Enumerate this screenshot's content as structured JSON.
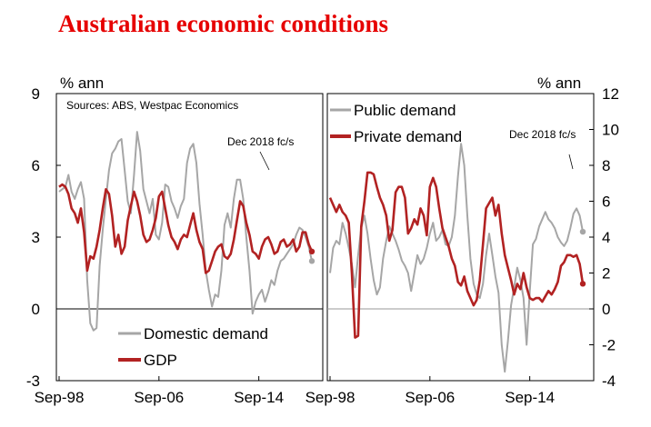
{
  "title": "Australian economic conditions",
  "colors": {
    "title": "#e60000",
    "red": "#b22222",
    "grey": "#a6a6a6",
    "axis": "#000000",
    "zero": "#999999"
  },
  "chart_data": [
    {
      "type": "line",
      "panel": "left",
      "unit_label": "% ann",
      "source": "Sources: ABS, Westpac Economics",
      "annotation": "Dec 2018 fc/s",
      "ylim": [
        -3,
        9
      ],
      "yticks": [
        -3,
        0,
        3,
        6,
        9
      ],
      "x_tick_labels": [
        "Sep-98",
        "Sep-06",
        "Sep-14"
      ],
      "x_tick_index": [
        0,
        32,
        64
      ],
      "x_count": 82,
      "series": [
        {
          "name": "Domestic demand",
          "color": "grey",
          "values": [
            4.9,
            5.0,
            5.1,
            5.6,
            4.9,
            4.6,
            5.0,
            5.3,
            4.6,
            1.2,
            -0.6,
            -0.9,
            -0.8,
            1.8,
            3.3,
            4.6,
            5.8,
            6.5,
            6.7,
            7.0,
            7.1,
            5.8,
            4.5,
            4.0,
            5.6,
            7.4,
            6.6,
            5.0,
            4.5,
            4.0,
            4.6,
            3.1,
            2.9,
            3.6,
            5.2,
            5.1,
            4.5,
            4.2,
            3.8,
            4.3,
            4.6,
            6.1,
            6.7,
            6.9,
            6.1,
            4.4,
            3.1,
            1.6,
            0.8,
            0.1,
            0.6,
            0.5,
            1.6,
            3.5,
            4.0,
            3.4,
            4.6,
            5.4,
            5.4,
            4.6,
            3.0,
            1.6,
            -0.2,
            0.3,
            0.6,
            0.8,
            0.3,
            0.7,
            1.2,
            1.0,
            1.6,
            2.0,
            2.1,
            2.3,
            2.5,
            2.7,
            3.1,
            3.4,
            3.3,
            3.0,
            2.6,
            2.0
          ],
          "end_marker": true
        },
        {
          "name": "GDP",
          "color": "red",
          "values": [
            5.1,
            5.2,
            5.1,
            4.8,
            4.2,
            4.0,
            3.6,
            4.2,
            3.2,
            1.6,
            2.2,
            2.1,
            2.6,
            3.3,
            4.2,
            5.0,
            4.8,
            3.9,
            2.6,
            3.1,
            2.3,
            2.6,
            3.7,
            4.3,
            4.9,
            4.5,
            3.9,
            3.1,
            2.8,
            2.9,
            3.3,
            3.8,
            4.7,
            4.9,
            4.2,
            3.5,
            3.0,
            2.8,
            2.5,
            2.9,
            3.1,
            3.0,
            3.5,
            4.0,
            3.3,
            2.8,
            2.5,
            1.5,
            1.6,
            2.0,
            2.4,
            2.6,
            2.7,
            2.2,
            2.1,
            2.3,
            2.9,
            3.7,
            4.5,
            4.3,
            3.6,
            3.1,
            2.4,
            2.3,
            2.1,
            2.6,
            2.9,
            3.0,
            2.7,
            2.3,
            2.4,
            2.8,
            2.9,
            2.6,
            2.7,
            2.9,
            2.4,
            2.6,
            3.2,
            3.2,
            2.7,
            2.4
          ],
          "end_marker": true
        }
      ]
    },
    {
      "type": "line",
      "panel": "right",
      "unit_label": "% ann",
      "annotation": "Dec 2018 fc/s",
      "ylim": [
        -4,
        12
      ],
      "yticks": [
        -4,
        -2,
        0,
        2,
        4,
        6,
        8,
        10,
        12
      ],
      "x_tick_labels": [
        "Sep-98",
        "Sep-06",
        "Sep-14"
      ],
      "x_tick_index": [
        0,
        32,
        64
      ],
      "x_count": 82,
      "series": [
        {
          "name": "Public demand",
          "color": "grey",
          "values": [
            2.0,
            3.4,
            3.8,
            3.6,
            4.8,
            4.2,
            3.4,
            2.5,
            1.2,
            3.0,
            4.5,
            5.2,
            4.2,
            2.8,
            1.6,
            0.8,
            1.2,
            2.8,
            3.8,
            4.6,
            4.2,
            3.8,
            3.3,
            2.7,
            2.4,
            2.0,
            1.0,
            2.0,
            3.0,
            2.5,
            2.8,
            3.4,
            4.2,
            4.8,
            3.8,
            4.0,
            4.4,
            3.6,
            3.5,
            4.0,
            5.2,
            7.4,
            9.2,
            8.0,
            5.2,
            2.8,
            1.4,
            0.8,
            0.6,
            1.4,
            3.0,
            4.2,
            3.0,
            1.8,
            0.9,
            -2.0,
            -3.5,
            -1.8,
            0.2,
            1.2,
            2.3,
            1.6,
            0.6,
            -2.0,
            1.0,
            3.6,
            3.9,
            4.6,
            5.0,
            5.4,
            5.0,
            4.8,
            4.5,
            4.0,
            3.7,
            3.5,
            3.8,
            4.5,
            5.3,
            5.6,
            5.2,
            4.3
          ],
          "end_marker": true
        },
        {
          "name": "Private demand",
          "color": "red",
          "values": [
            6.2,
            5.8,
            5.4,
            5.8,
            5.4,
            5.2,
            4.8,
            2.0,
            -1.6,
            -1.5,
            4.6,
            6.0,
            7.6,
            7.6,
            7.5,
            6.8,
            6.2,
            5.8,
            5.2,
            3.8,
            4.4,
            6.5,
            6.8,
            6.8,
            6.2,
            4.2,
            4.5,
            5.0,
            4.7,
            5.6,
            5.2,
            4.1,
            6.8,
            7.3,
            6.8,
            5.6,
            4.5,
            4.0,
            3.5,
            2.8,
            2.4,
            1.5,
            1.3,
            1.8,
            1.0,
            0.6,
            0.2,
            0.5,
            1.6,
            3.6,
            5.6,
            5.9,
            6.2,
            5.2,
            5.8,
            4.2,
            3.0,
            2.3,
            1.6,
            0.8,
            1.4,
            1.1,
            2.0,
            1.2,
            0.6,
            0.5,
            0.6,
            0.6,
            0.4,
            0.7,
            1.0,
            0.8,
            1.1,
            1.5,
            2.4,
            2.6,
            3.0,
            3.0,
            2.9,
            3.0,
            2.5,
            1.4
          ],
          "end_marker": true
        }
      ]
    }
  ]
}
